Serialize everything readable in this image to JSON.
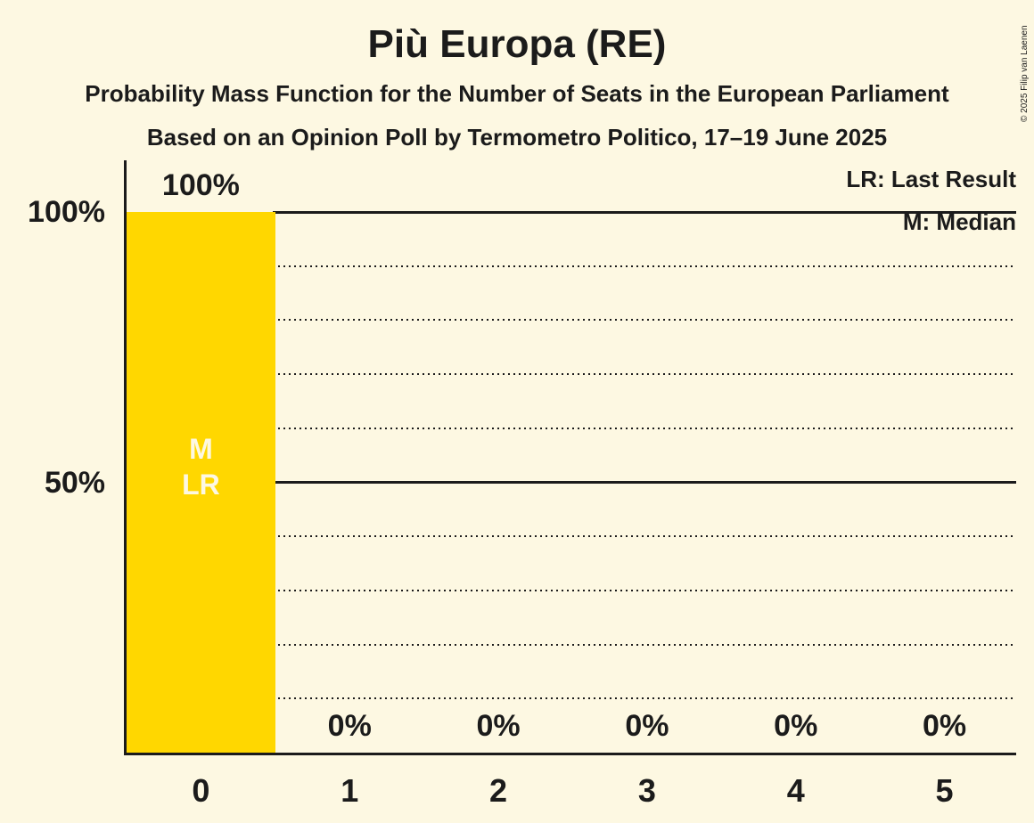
{
  "header": {
    "title": "Più Europa (RE)",
    "subtitle1": "Probability Mass Function for the Number of Seats in the European Parliament",
    "subtitle2": "Based on an Opinion Poll by Termometro Politico, 17–19 June 2025"
  },
  "copyright": "© 2025 Filip van Laenen",
  "legend": {
    "lr": "LR: Last Result",
    "m": "M: Median"
  },
  "chart_data": {
    "type": "bar",
    "title": "Più Europa (RE)",
    "categories": [
      "0",
      "1",
      "2",
      "3",
      "4",
      "5"
    ],
    "values": [
      100,
      0,
      0,
      0,
      0,
      0
    ],
    "value_labels": [
      "100%",
      "0%",
      "0%",
      "0%",
      "0%",
      "0%"
    ],
    "y_tick_labels": {
      "p100": "100%",
      "p50": "50%"
    },
    "ylim": [
      0,
      100
    ],
    "y_gridlines": {
      "solid_at": [
        50,
        100
      ],
      "dotted_at": [
        10,
        20,
        30,
        40,
        60,
        70,
        80,
        90
      ]
    },
    "bar_color": "#FFD700",
    "background_color": "#FDF8E2",
    "annotations": {
      "bar_index": 0,
      "lines": [
        "M",
        "LR"
      ],
      "meaning": [
        "Median",
        "Last Result"
      ]
    },
    "legend_position": "top-right",
    "grid": "horizontal-only"
  }
}
